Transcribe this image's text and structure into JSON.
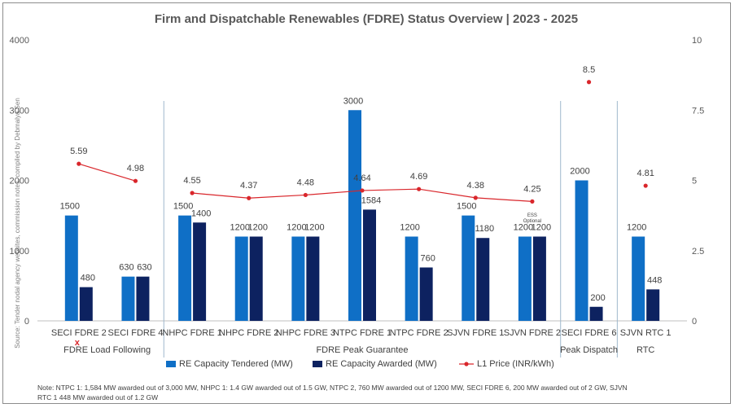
{
  "chart_data": {
    "type": "bar",
    "title": "Firm and Dispatchable Renewables (FDRE) Status Overview | 2023 - 2025",
    "categories": [
      "SECI FDRE 2",
      "SECI FDRE 4",
      "NHPC FDRE 1",
      "NHPC FDRE 2",
      "NHPC FDRE 3",
      "NTPC FDRE 1",
      "NTPC FDRE 2",
      "SJVN FDRE 1",
      "SJVN FDRE 2",
      "SECI FDRE 6",
      "SJVN RTC 1"
    ],
    "groups": [
      {
        "label": "FDRE Load Following",
        "start": 0,
        "end": 1
      },
      {
        "label": "FDRE Peak Guarantee",
        "start": 2,
        "end": 8
      },
      {
        "label": "Peak Dispatch",
        "start": 9,
        "end": 9
      },
      {
        "label": "RTC",
        "start": 10,
        "end": 10
      }
    ],
    "series": [
      {
        "name": "RE Capacity Tendered (MW)",
        "color": "#0f6fc6",
        "axis": "left",
        "values": [
          1500,
          630,
          1500,
          1200,
          1200,
          3000,
          1200,
          1500,
          1200,
          2000,
          1200
        ]
      },
      {
        "name": "RE Capacity Awarded (MW)",
        "color": "#0d2260",
        "axis": "left",
        "values": [
          480,
          630,
          1400,
          1200,
          1200,
          1584,
          760,
          1180,
          1200,
          200,
          448
        ]
      },
      {
        "name": "L1 Price (INR/kWh)",
        "color": "#d9262b",
        "axis": "right",
        "type": "line",
        "values": [
          5.59,
          4.98,
          4.55,
          4.37,
          4.48,
          4.64,
          4.69,
          4.38,
          4.25,
          8.5,
          4.81
        ],
        "line_segments": [
          [
            0,
            1
          ],
          [
            2,
            8
          ]
        ]
      }
    ],
    "ylim_left": [
      0,
      4000
    ],
    "yticks_left": [
      "0",
      "1000",
      "2000",
      "3000",
      "4000"
    ],
    "ylim_right": [
      0,
      10
    ],
    "yticks_right": [
      "0",
      "2.5",
      "5",
      "7.5",
      "10"
    ],
    "annotations": {
      "cross_mark": "x",
      "ess_line1": "ESS",
      "ess_line2": "Optional"
    },
    "legend_position": "bottom",
    "source": "Source: Tender nodal agency websites, commission notes, compiled by Debmalya Sen",
    "note_line1": "Note: NTPC 1: 1,584 MW awarded out of 3,000 MW, NHPC 1: 1.4 GW awarded out of 1.5 GW, NTPC 2, 760 MW awarded out of 1200 MW, SECI FDRE 6, 200 MW awarded out of 2 GW, SJVN",
    "note_line2": "RTC 1 448 MW awarded out of 1.2 GW"
  }
}
